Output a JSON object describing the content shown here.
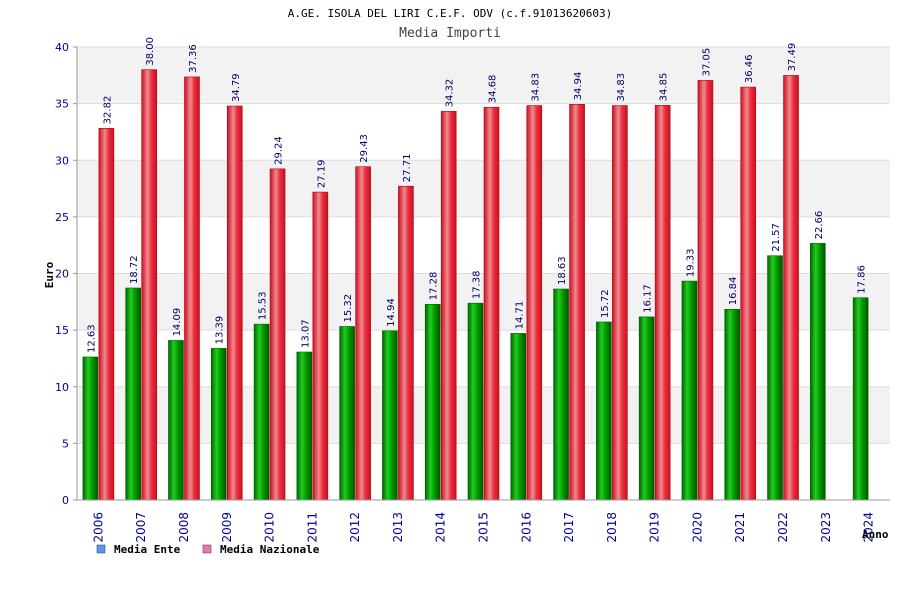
{
  "chart_data": {
    "type": "bar",
    "title": "A.GE. ISOLA DEL LIRI C.E.F. ODV (c.f.91013620603)",
    "subtitle": "Media Importi",
    "xlabel": "Anno",
    "ylabel": "Euro",
    "ylim": [
      0,
      40
    ],
    "yticks": [
      0,
      5,
      10,
      15,
      20,
      25,
      30,
      35,
      40
    ],
    "categories": [
      "2006",
      "2007",
      "2008",
      "2009",
      "2010",
      "2011",
      "2012",
      "2013",
      "2014",
      "2015",
      "2016",
      "2017",
      "2018",
      "2019",
      "2020",
      "2021",
      "2022",
      "2023",
      "2024"
    ],
    "series": [
      {
        "name": "Media Ente",
        "color": "#00aa00",
        "values": [
          12.63,
          18.72,
          14.09,
          13.39,
          15.53,
          13.07,
          15.32,
          14.94,
          17.28,
          17.38,
          14.71,
          18.63,
          15.72,
          16.17,
          19.33,
          16.84,
          21.57,
          22.66,
          17.86
        ],
        "labels": [
          "12.63",
          "18.72",
          "14.09",
          "13.39",
          "15.53",
          "13.07",
          "15.32",
          "14.94",
          "17.28",
          "17.38",
          "14.71",
          "18.63",
          "15.72",
          "16.17",
          "19.33",
          "16.84",
          "21.57",
          "22.66",
          "17.86"
        ]
      },
      {
        "name": "Media Nazionale",
        "color": "#e8202a",
        "values": [
          32.82,
          38.0,
          37.36,
          34.79,
          29.24,
          27.19,
          29.43,
          27.71,
          34.32,
          34.68,
          34.83,
          34.94,
          34.83,
          34.85,
          37.05,
          36.46,
          37.49,
          null,
          null
        ],
        "labels": [
          "32.82",
          "38.00",
          "37.36",
          "34.79",
          "29.24",
          "27.19",
          "29.43",
          "27.71",
          "34.32",
          "34.68",
          "34.83",
          "34.94",
          "34.83",
          "34.85",
          "37.05",
          "36.46",
          "37.49",
          null,
          null
        ]
      }
    ],
    "legend": [
      {
        "label": "Media Ente",
        "swatch_color": "#5599ee"
      },
      {
        "label": "Media Nazionale",
        "swatch_color": "#ee77aa"
      }
    ],
    "legend_position": "bottom-left",
    "grid": true
  }
}
